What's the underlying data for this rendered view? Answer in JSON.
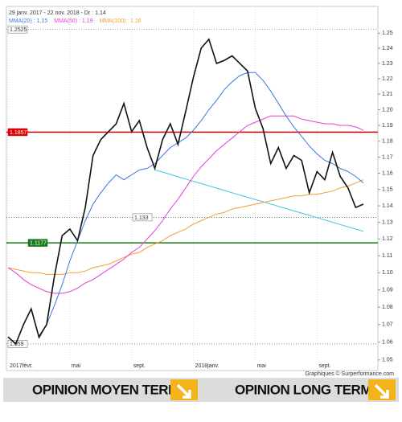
{
  "chart_data": {
    "type": "line",
    "subtitle": "29 janv. 2017 - 22 nov. 2018 - Dr : 1.14",
    "source": "Graphiques © Surperformance.com",
    "log_scale": true,
    "ylim": [
      1.049,
      1.255
    ],
    "yticks": [
      1.05,
      1.06,
      1.07,
      1.08,
      1.09,
      {
        "value": 1.1,
        "label": "1.10"
      },
      1.11,
      1.12,
      1.13,
      1.14,
      1.15,
      1.16,
      1.17,
      1.18,
      1.19,
      {
        "value": 1.2,
        "label": "1.20"
      },
      1.21,
      1.22,
      1.23,
      1.24,
      1.25
    ],
    "categories": [
      "2017févr.",
      null,
      null,
      null,
      null,
      null,
      null,
      null,
      "mai",
      null,
      null,
      null,
      null,
      null,
      null,
      null,
      "sept.",
      null,
      null,
      null,
      null,
      null,
      null,
      null,
      "2018janv.",
      null,
      null,
      null,
      null,
      null,
      null,
      null,
      "mai",
      null,
      null,
      null,
      null,
      null,
      null,
      null,
      "sept.",
      null,
      null,
      null,
      null,
      null,
      null
    ],
    "series": [
      {
        "color": "#111111",
        "values": [
          1.063,
          1.059,
          1.07,
          1.079,
          1.063,
          1.07,
          1.098,
          1.122,
          1.126,
          1.119,
          1.139,
          1.171,
          1.181,
          1.186,
          1.191,
          1.204,
          1.186,
          1.193,
          1.176,
          1.163,
          1.181,
          1.191,
          1.178,
          1.199,
          1.221,
          1.24,
          1.246,
          1.23,
          1.232,
          1.235,
          1.23,
          1.225,
          1.201,
          1.188,
          1.166,
          1.176,
          1.163,
          1.171,
          1.168,
          1.148,
          1.161,
          1.156,
          1.173,
          1.158,
          1.151,
          1.139,
          1.141
        ]
      },
      {
        "name": "MMA(20) : 1.15",
        "color": "#3a78d8",
        "values": [
          null,
          null,
          null,
          null,
          1.062,
          1.07,
          1.081,
          1.093,
          1.107,
          1.119,
          1.131,
          1.141,
          1.148,
          1.154,
          1.159,
          1.156,
          1.159,
          1.162,
          1.163,
          1.166,
          1.171,
          1.176,
          1.179,
          1.182,
          1.187,
          1.193,
          1.2,
          1.206,
          1.213,
          1.218,
          1.222,
          1.224,
          1.224,
          1.219,
          1.212,
          1.204,
          1.196,
          1.189,
          1.183,
          1.177,
          1.172,
          1.168,
          1.166,
          1.163,
          1.161,
          1.158,
          1.154
        ]
      },
      {
        "name": "MMA(50) : 1.19",
        "color": "#e040d8",
        "values": [
          1.103,
          1.1,
          1.096,
          1.093,
          1.091,
          1.089,
          1.088,
          1.088,
          1.089,
          1.091,
          1.094,
          1.096,
          1.099,
          1.102,
          1.105,
          1.108,
          1.112,
          1.115,
          1.12,
          1.125,
          1.131,
          1.138,
          1.144,
          1.151,
          1.158,
          1.164,
          1.169,
          1.174,
          1.178,
          1.182,
          1.186,
          1.19,
          1.192,
          1.194,
          1.196,
          1.196,
          1.196,
          1.196,
          1.194,
          1.193,
          1.192,
          1.191,
          1.191,
          1.19,
          1.19,
          1.189,
          1.187
        ]
      },
      {
        "name": "MMA(100) : 1.16",
        "color": "#f0a030",
        "values": [
          1.103,
          1.102,
          1.101,
          1.1,
          1.1,
          1.099,
          1.099,
          1.099,
          1.1,
          1.1,
          1.101,
          1.103,
          1.104,
          1.105,
          1.107,
          1.109,
          1.111,
          1.112,
          1.115,
          1.117,
          1.119,
          1.122,
          1.124,
          1.126,
          1.129,
          1.131,
          1.133,
          1.135,
          1.136,
          1.138,
          1.139,
          1.14,
          1.141,
          1.142,
          1.143,
          1.144,
          1.145,
          1.146,
          1.146,
          1.147,
          1.147,
          1.148,
          1.149,
          1.151,
          1.152,
          1.154,
          1.156
        ]
      }
    ],
    "trendline": {
      "color": "#3cc4e4",
      "values": [
        null,
        null,
        null,
        null,
        null,
        null,
        null,
        null,
        null,
        null,
        null,
        null,
        null,
        null,
        null,
        null,
        null,
        null,
        null,
        1.1621,
        1.1607,
        1.1593,
        1.1578,
        1.1564,
        1.155,
        1.1536,
        1.1522,
        1.1508,
        1.1494,
        1.148,
        1.1466,
        1.1452,
        1.1438,
        1.1425,
        1.1411,
        1.1397,
        1.1383,
        1.1369,
        1.1356,
        1.1342,
        1.1328,
        1.1314,
        1.1301,
        1.1287,
        1.1273,
        1.126,
        1.1246
      ]
    },
    "levels": [
      {
        "value": 1.2525,
        "color": "#888888",
        "style": "dotted"
      },
      {
        "value": 1.1857,
        "color": "#e00000",
        "style": "solid"
      },
      {
        "value": 1.1177,
        "color": "#1a7a1a",
        "style": "solid"
      },
      {
        "value": 1.133,
        "color": "#666666",
        "style": "dotted"
      },
      {
        "value": 1.059,
        "color": "#666666",
        "style": "dotted"
      }
    ]
  },
  "opinions": [
    "OPINION MOYEN TERME",
    "OPINION LONG TERME"
  ]
}
